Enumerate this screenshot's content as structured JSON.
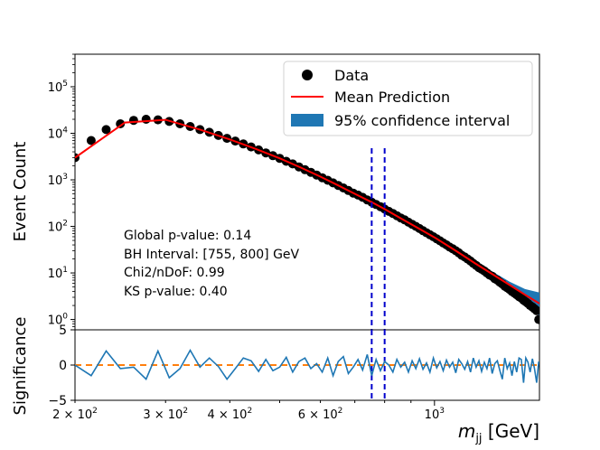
{
  "chart_data": [
    {
      "type": "scatter",
      "xscale": "log",
      "yscale": "log",
      "xlim": [
        200,
        1600
      ],
      "ylim": [
        0.6,
        500000
      ],
      "ylabel": "Event Count",
      "yticks": [
        {
          "v": 1,
          "base": "10",
          "exp": "0"
        },
        {
          "v": 10,
          "base": "10",
          "exp": "1"
        },
        {
          "v": 100,
          "base": "10",
          "exp": "2"
        },
        {
          "v": 1000,
          "base": "10",
          "exp": "3"
        },
        {
          "v": 10000,
          "base": "10",
          "exp": "4"
        },
        {
          "v": 100000,
          "base": "10",
          "exp": "5"
        }
      ],
      "legend": {
        "placement": "upper right",
        "entries": [
          {
            "label": "Data",
            "kind": "marker",
            "color": "#000000"
          },
          {
            "label": "Mean Prediction",
            "kind": "line",
            "color": "#ff0000"
          },
          {
            "label": "95% confidence interval",
            "kind": "patch",
            "color": "#1f77b4"
          }
        ]
      },
      "annotations": [
        "Global p-value: 0.14",
        "BH Interval: [755, 800] GeV",
        "Chi2/nDoF: 0.99",
        "KS p-value: 0.40"
      ],
      "bh_interval": [
        755,
        800
      ],
      "data_points": {
        "x": [
          200,
          215,
          230,
          245,
          260,
          275,
          290,
          305,
          320,
          335,
          350,
          365,
          380,
          395,
          410,
          425,
          440,
          455,
          470,
          485,
          500,
          515,
          530,
          545,
          560,
          575,
          590,
          605,
          620,
          635,
          650,
          665,
          680,
          695,
          710,
          725,
          740,
          755,
          770,
          785,
          800,
          815,
          830,
          845,
          860,
          875,
          890,
          905,
          920,
          935,
          950,
          965,
          980,
          995,
          1010,
          1025,
          1040,
          1055,
          1070,
          1085,
          1100,
          1115,
          1130,
          1145,
          1160,
          1175,
          1190,
          1205,
          1220,
          1235,
          1250,
          1265,
          1280,
          1295,
          1310,
          1325,
          1340,
          1355,
          1370,
          1385,
          1400,
          1415,
          1430,
          1445,
          1460,
          1475,
          1490,
          1505,
          1520,
          1535,
          1550,
          1565,
          1580,
          1595
        ],
        "y": [
          3000,
          7000,
          12000,
          16000,
          19000,
          20000,
          19500,
          18000,
          16000,
          14000,
          12000,
          10500,
          9000,
          7800,
          6800,
          5900,
          5100,
          4400,
          3800,
          3300,
          2900,
          2500,
          2200,
          1900,
          1650,
          1450,
          1270,
          1110,
          980,
          860,
          760,
          670,
          590,
          520,
          470,
          420,
          370,
          330,
          295,
          265,
          235,
          210,
          190,
          170,
          152,
          138,
          123,
          111,
          100,
          90,
          81,
          73,
          66,
          60,
          54,
          49,
          44,
          40,
          36,
          33,
          30,
          27,
          24,
          22,
          20,
          18,
          16,
          14.5,
          13,
          12,
          11,
          10,
          9,
          8.5,
          7.5,
          7,
          6.3,
          5.8,
          5.2,
          4.8,
          4.4,
          4.0,
          3.7,
          3.4,
          3.1,
          2.9,
          2.6,
          2.4,
          2.2,
          2.0,
          1.85,
          1.7,
          1.55,
          1.0
        ]
      },
      "mean_prediction": {
        "x": [
          200,
          250,
          300,
          350,
          400,
          450,
          500,
          550,
          600,
          650,
          700,
          755,
          800,
          850,
          900,
          950,
          1000,
          1100,
          1200,
          1300,
          1400,
          1500,
          1600
        ],
        "y": [
          3000,
          17000,
          19500,
          12000,
          7400,
          4600,
          2900,
          1830,
          1170,
          760,
          500,
          330,
          235,
          160,
          112,
          80,
          58,
          30,
          16,
          9.2,
          5.5,
          3.4,
          2.2
        ]
      },
      "confidence_interval": {
        "x": [
          1100,
          1200,
          1300,
          1400,
          1500,
          1600
        ],
        "lower": [
          28,
          14.5,
          8,
          4.4,
          2.4,
          1.2
        ],
        "upper": [
          32,
          17.5,
          10.5,
          6.5,
          4.5,
          3.8
        ]
      }
    },
    {
      "type": "line",
      "xscale": "log",
      "xlim": [
        200,
        1600
      ],
      "ylim": [
        -5,
        5
      ],
      "xlabel": "m_jj [GeV]",
      "xlabel_main": "m",
      "xlabel_sub": "jj",
      "xlabel_unit": " [GeV]",
      "ylabel": "Significance",
      "yticks": [
        -5,
        0,
        5
      ],
      "xticks": [
        {
          "v": 200,
          "label": "2 × 10",
          "exp": "2"
        },
        {
          "v": 300,
          "label": "3 × 10",
          "exp": "2"
        },
        {
          "v": 400,
          "label": "4 × 10",
          "exp": "2"
        },
        {
          "v": 600,
          "label": "6 × 10",
          "exp": "2"
        },
        {
          "v": 1000,
          "label": "10",
          "exp": "3"
        }
      ],
      "series": [
        {
          "x": [
            200,
            215,
            230,
            245,
            260,
            275,
            290,
            305,
            320,
            335,
            350,
            365,
            380,
            395,
            410,
            425,
            440,
            455,
            470,
            485,
            500,
            515,
            530,
            545,
            560,
            575,
            590,
            605,
            620,
            635,
            650,
            665,
            680,
            695,
            710,
            725,
            740,
            755,
            770,
            785,
            800,
            815,
            830,
            845,
            860,
            875,
            890,
            905,
            920,
            935,
            950,
            965,
            980,
            995,
            1010,
            1025,
            1040,
            1055,
            1070,
            1085,
            1100,
            1115,
            1130,
            1145,
            1160,
            1175,
            1190,
            1205,
            1220,
            1235,
            1250,
            1265,
            1280,
            1295,
            1310,
            1325,
            1340,
            1355,
            1370,
            1385,
            1400,
            1415,
            1430,
            1445,
            1460,
            1475,
            1490,
            1505,
            1520,
            1535,
            1550,
            1565,
            1580,
            1595
          ],
          "y": [
            0.0,
            -1.5,
            2.0,
            -0.5,
            -0.3,
            -2.0,
            2.0,
            -1.8,
            -0.5,
            2.1,
            -0.3,
            1.0,
            -0.2,
            -2.0,
            -0.5,
            1.0,
            0.6,
            -0.9,
            0.8,
            -0.8,
            -0.3,
            1.1,
            -1.0,
            0.5,
            1.0,
            -0.5,
            0.2,
            -1.0,
            1.0,
            -1.5,
            0.5,
            1.2,
            -1.2,
            -0.3,
            0.8,
            -0.7,
            1.5,
            -1.5,
            0.8,
            -0.8,
            0.5,
            0.0,
            -1.0,
            0.8,
            -0.3,
            0.4,
            -1.0,
            0.6,
            -0.5,
            0.9,
            -0.6,
            0.3,
            -1.0,
            1.0,
            -0.4,
            0.5,
            -0.8,
            0.7,
            -0.3,
            0.4,
            -1.1,
            0.8,
            0.2,
            -0.6,
            0.5,
            -1.0,
            1.0,
            -0.3,
            0.6,
            -0.9,
            0.4,
            -0.5,
            1.0,
            -1.2,
            0.2,
            0.6,
            -0.8,
            -2.0,
            1.0,
            -0.5,
            0.3,
            -1.5,
            0.5,
            -1.0,
            1.0,
            0.8,
            -2.5,
            1.0,
            0.4,
            -1.0,
            0.9,
            -0.5,
            -2.5,
            0.5
          ],
          "color": "#1f77b4"
        }
      ],
      "reference_line": {
        "y": 0,
        "color": "#ff7f0e",
        "style": "dashed"
      },
      "bh_interval": [
        755,
        800
      ]
    }
  ]
}
